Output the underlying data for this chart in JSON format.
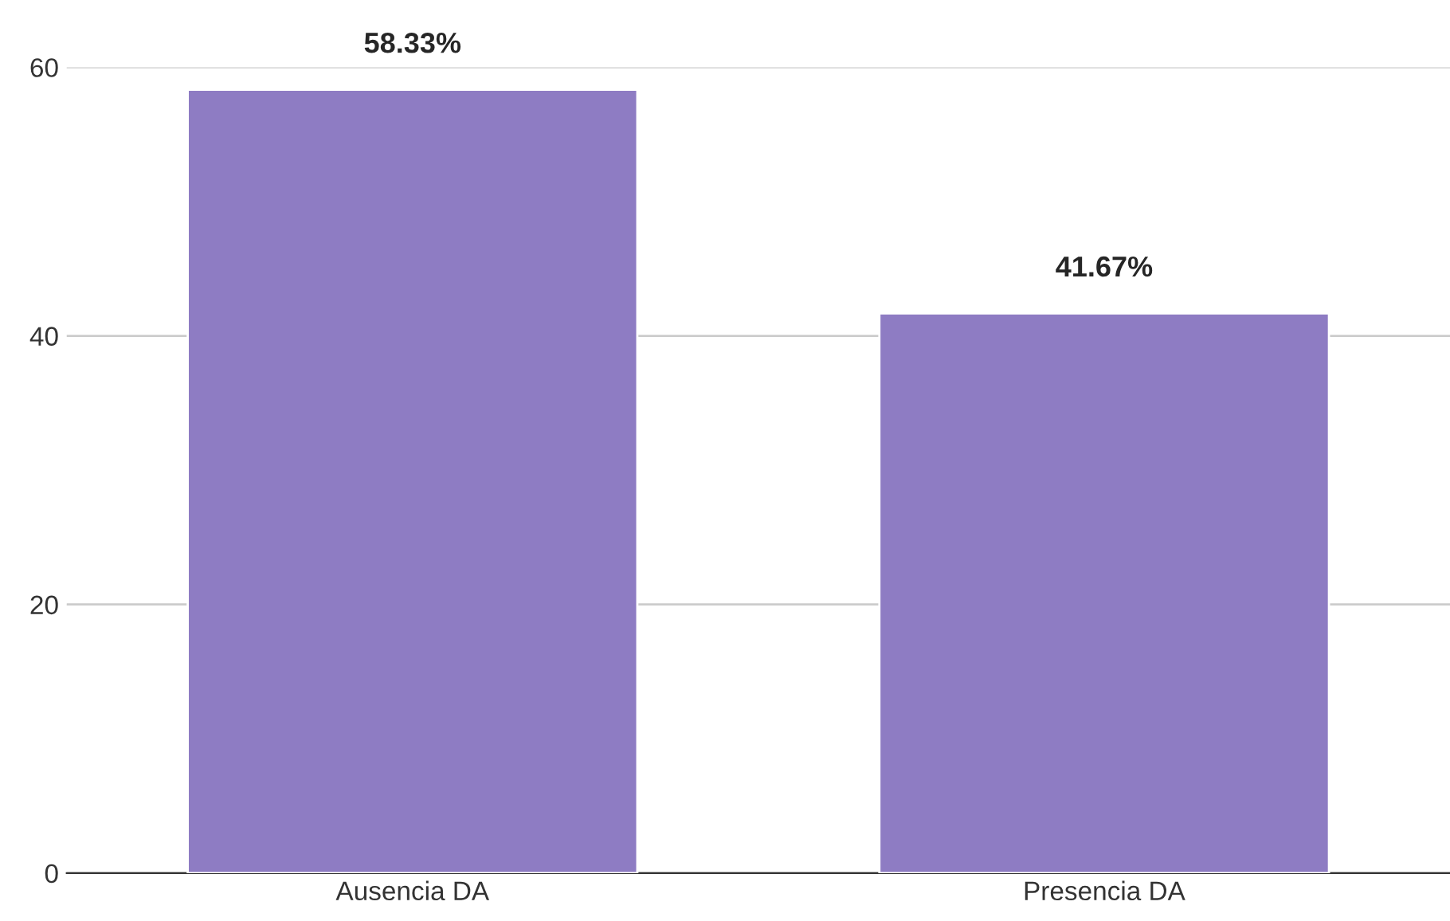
{
  "chart_data": {
    "type": "bar",
    "categories": [
      "Ausencia DA",
      "Presencia DA"
    ],
    "values": [
      58.33,
      41.67
    ],
    "value_labels": [
      "58.33%",
      "41.67%"
    ],
    "color": "#8e7cc3",
    "ylim": [
      0,
      60
    ],
    "yticks": [
      0,
      20,
      40,
      60
    ],
    "grid": "y"
  }
}
